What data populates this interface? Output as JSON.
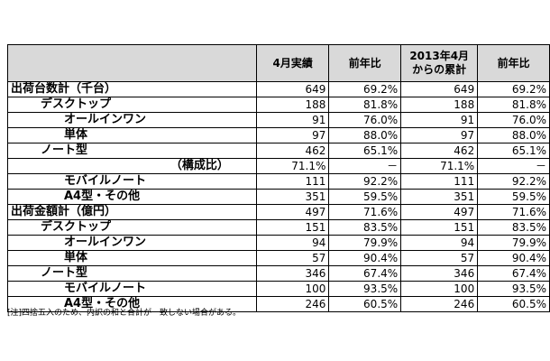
{
  "table": {
    "headers": [
      "",
      "4月実績",
      "前年比",
      "2013年4月|からの累計",
      "前年比"
    ],
    "rows": [
      {
        "label": "出荷台数計（千台）",
        "indent": 0,
        "values": [
          "649",
          "69.2%",
          "649",
          "69.2%"
        ]
      },
      {
        "label": "デスクトップ",
        "indent": 1,
        "values": [
          "188",
          "81.8%",
          "188",
          "81.8%"
        ]
      },
      {
        "label": "オールインワン",
        "indent": 2,
        "values": [
          "91",
          "76.0%",
          "91",
          "76.0%"
        ]
      },
      {
        "label": "単体",
        "indent": 2,
        "values": [
          "97",
          "88.0%",
          "97",
          "88.0%"
        ]
      },
      {
        "label": "ノート型",
        "indent": 1,
        "values": [
          "462",
          "65.1%",
          "462",
          "65.1%"
        ]
      },
      {
        "label": "（構成比）",
        "indent": "r",
        "values": [
          "71.1%",
          "－",
          "71.1%",
          "－"
        ]
      },
      {
        "label": "モバイルノート",
        "indent": 2,
        "values": [
          "111",
          "92.2%",
          "111",
          "92.2%"
        ]
      },
      {
        "label": "A4型・その他",
        "indent": 2,
        "values": [
          "351",
          "59.5%",
          "351",
          "59.5%"
        ]
      },
      {
        "label": "出荷金額計（億円）",
        "indent": 0,
        "values": [
          "497",
          "71.6%",
          "497",
          "71.6%"
        ]
      },
      {
        "label": "デスクトップ",
        "indent": 1,
        "values": [
          "151",
          "83.5%",
          "151",
          "83.5%"
        ]
      },
      {
        "label": "オールインワン",
        "indent": 2,
        "values": [
          "94",
          "79.9%",
          "94",
          "79.9%"
        ]
      },
      {
        "label": "単体",
        "indent": 2,
        "values": [
          "57",
          "90.4%",
          "57",
          "90.4%"
        ]
      },
      {
        "label": "ノート型",
        "indent": 1,
        "values": [
          "346",
          "67.4%",
          "346",
          "67.4%"
        ]
      },
      {
        "label": "モバイルノート",
        "indent": 2,
        "values": [
          "100",
          "93.5%",
          "100",
          "93.5%"
        ]
      },
      {
        "label": "A4型・その他",
        "indent": 2,
        "values": [
          "246",
          "60.5%",
          "246",
          "60.5%"
        ]
      }
    ]
  },
  "note": "[注]四捨五入のため、内訳の和と合計が一致しない場合がある。",
  "colors": {
    "header_bg": "#d9d9d9",
    "border": "#000000"
  }
}
